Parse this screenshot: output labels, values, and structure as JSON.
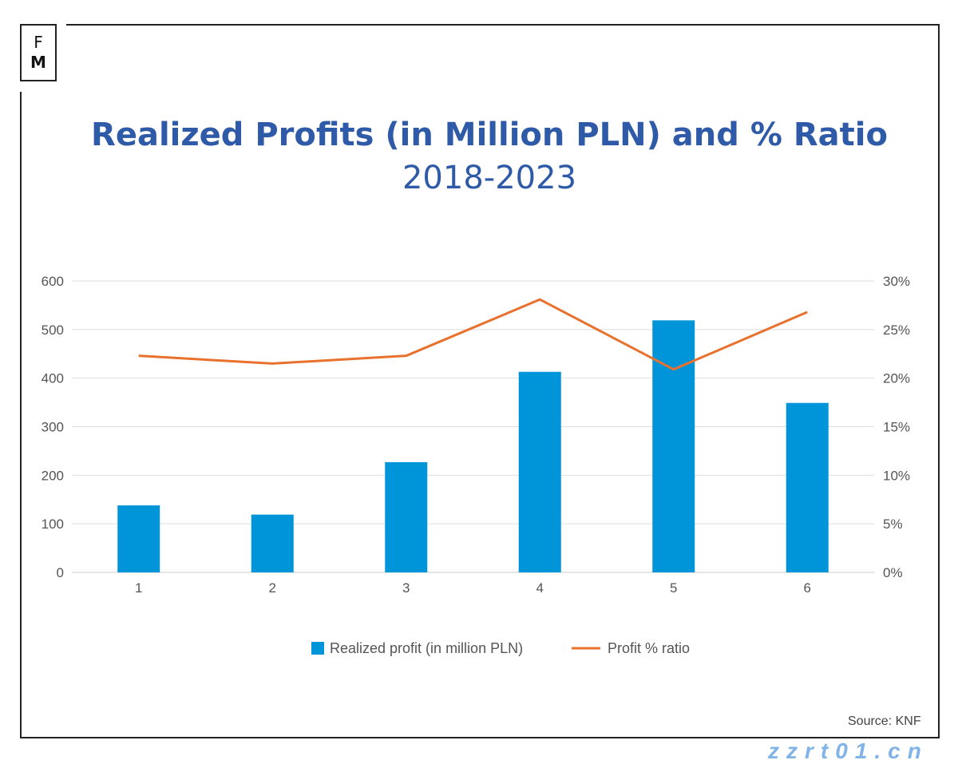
{
  "logo": {
    "top": "F",
    "bottom": "M"
  },
  "chart_data": {
    "type": "bar+line",
    "title": "Realized Profits (in Million PLN) and % Ratio",
    "subtitle": "2018-2023",
    "categories": [
      "1",
      "2",
      "3",
      "4",
      "5",
      "6"
    ],
    "series": [
      {
        "name": "Realized profit (in million PLN)",
        "type": "bar",
        "axis": "left",
        "color": "#0094d9",
        "values": [
          138,
          119,
          227,
          413,
          519,
          349
        ]
      },
      {
        "name": "Profit % ratio",
        "type": "line",
        "axis": "right",
        "color": "#e8712e",
        "values": [
          22.3,
          21.5,
          22.3,
          28.1,
          20.9,
          26.8
        ]
      }
    ],
    "y_left": {
      "ylim": [
        0,
        600
      ],
      "ticks": [
        "0",
        "100",
        "200",
        "300",
        "400",
        "500",
        "600"
      ]
    },
    "y_right": {
      "ylim": [
        0,
        30
      ],
      "ticks": [
        "0%",
        "5%",
        "10%",
        "15%",
        "20%",
        "25%",
        "30%"
      ]
    },
    "grid": true,
    "legend": "bottom"
  },
  "source": "Source: KNF",
  "watermark": "zzrt01.cn"
}
